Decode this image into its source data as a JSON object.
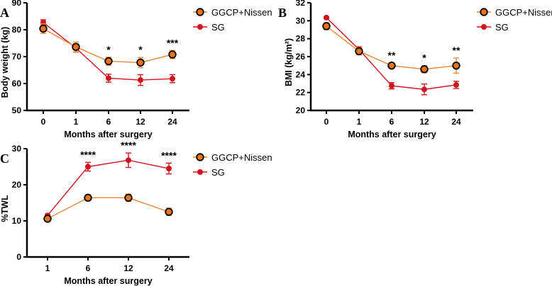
{
  "colors": {
    "ggcp_fill": "#e8731c",
    "ggcp_line": "#e8873a",
    "sg": "#d0141e",
    "axis": "#000000"
  },
  "legend": [
    "GGCP+Nissen",
    "SG"
  ],
  "chart_data": [
    {
      "panel": "A",
      "type": "line",
      "xlabel": "Months after surgery",
      "ylabel": "Body weight (kg)",
      "categories": [
        "0",
        "1",
        "6",
        "12",
        "24"
      ],
      "ylim": [
        50,
        90
      ],
      "yticks": [
        "50",
        "60",
        "70",
        "80",
        "90"
      ],
      "series": [
        {
          "name": "GGCP+Nissen",
          "values": [
            80.4,
            73.6,
            68.3,
            67.8,
            70.8
          ],
          "errors": [
            1.8,
            1.8,
            1.5,
            1.9,
            1.5
          ]
        },
        {
          "name": "SG",
          "values": [
            82.7,
            73.2,
            62.0,
            61.3,
            61.8
          ],
          "errors": [
            1.0,
            1.5,
            1.5,
            2.0,
            1.5
          ]
        }
      ],
      "significance": [
        "",
        "",
        "*",
        "*",
        "***"
      ]
    },
    {
      "panel": "B",
      "type": "line",
      "xlabel": "Months after surgery",
      "ylabel": "BMI (kg/m²)",
      "categories": [
        "0",
        "1",
        "6",
        "12",
        "24"
      ],
      "ylim": [
        20,
        32
      ],
      "yticks": [
        "20",
        "22",
        "24",
        "26",
        "28",
        "30",
        "32"
      ],
      "series": [
        {
          "name": "GGCP+Nissen",
          "values": [
            29.4,
            26.6,
            25.0,
            24.6,
            25.0
          ],
          "errors": [
            0.4,
            0.4,
            0.3,
            0.4,
            0.85
          ]
        },
        {
          "name": "SG",
          "values": [
            30.35,
            26.8,
            22.75,
            22.35,
            22.85
          ],
          "errors": [
            0.1,
            0.3,
            0.35,
            0.6,
            0.4
          ]
        }
      ],
      "significance": [
        "",
        "",
        "**",
        "*",
        "**"
      ]
    },
    {
      "panel": "C",
      "type": "line",
      "xlabel": "Months after surgery",
      "ylabel": "%TWL",
      "categories": [
        "1",
        "6",
        "12",
        "24"
      ],
      "ylim": [
        0,
        30
      ],
      "yticks": [
        "0",
        "10",
        "20",
        "30"
      ],
      "series": [
        {
          "name": "GGCP+Nissen",
          "values": [
            10.6,
            16.4,
            16.4,
            12.5
          ],
          "errors": [
            0.4,
            0.8,
            1.0,
            1.0
          ]
        },
        {
          "name": "SG",
          "values": [
            11.5,
            25.0,
            26.8,
            24.5
          ],
          "errors": [
            0.3,
            1.2,
            2.0,
            1.5
          ]
        }
      ],
      "significance": [
        "",
        "****",
        "****",
        "****"
      ]
    }
  ]
}
